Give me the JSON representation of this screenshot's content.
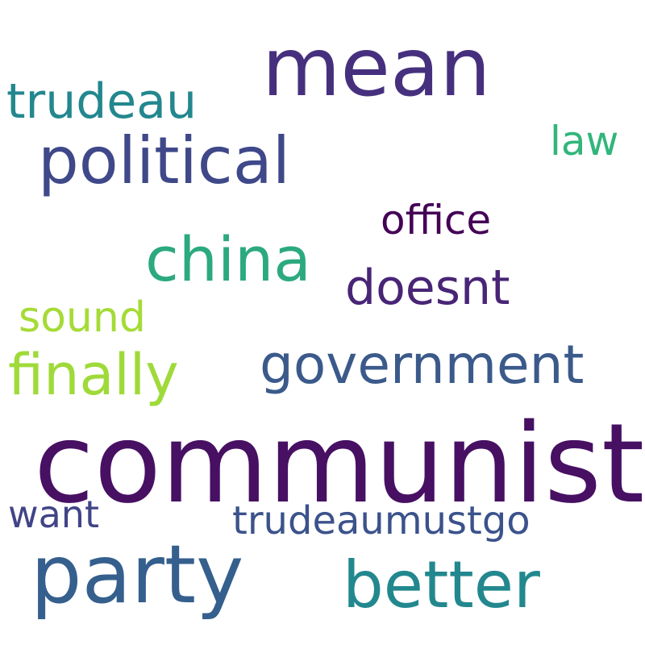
{
  "wordcloud": {
    "words": [
      {
        "text": "communist",
        "color": "#471063"
      },
      {
        "text": "mean",
        "color": "#46307e"
      },
      {
        "text": "party",
        "color": "#355f8d"
      },
      {
        "text": "political",
        "color": "#3f4889"
      },
      {
        "text": "better",
        "color": "#22888e"
      },
      {
        "text": "china",
        "color": "#2ca97f"
      },
      {
        "text": "finally",
        "color": "#9fda3a"
      },
      {
        "text": "government",
        "color": "#3b5a8b"
      },
      {
        "text": "doesnt",
        "color": "#482576"
      },
      {
        "text": "trudeau",
        "color": "#23878e"
      },
      {
        "text": "sound",
        "color": "#a5db36"
      },
      {
        "text": "office",
        "color": "#440255"
      },
      {
        "text": "law",
        "color": "#31b57b"
      },
      {
        "text": "trudeaumustgo",
        "color": "#3b528b"
      },
      {
        "text": "want",
        "color": "#414487"
      }
    ]
  }
}
